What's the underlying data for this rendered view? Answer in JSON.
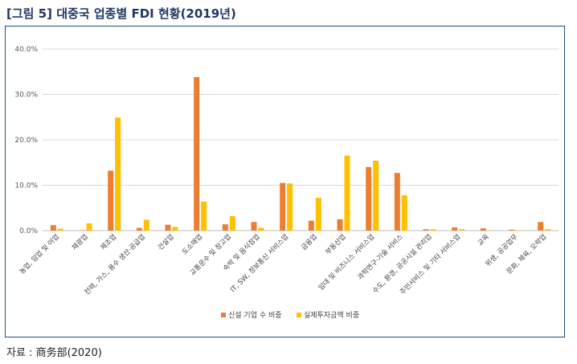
{
  "figure": {
    "title_tag": "[그림 5]",
    "title_text": "대중국 업종별 FDI 현황(2019년)",
    "source": "자료 : 商务部(2020)"
  },
  "chart_data": {
    "type": "bar",
    "title": "",
    "xlabel": "",
    "ylabel": "",
    "ylim": [
      0,
      40
    ],
    "yticks": [
      "0.0%",
      "10.0%",
      "20.0%",
      "30.0%",
      "40.0%"
    ],
    "ytick_values": [
      0,
      10,
      20,
      30,
      40
    ],
    "grid": true,
    "legend_position": "bottom",
    "categories": [
      "농업, 임업 및 어업",
      "채광업",
      "제조업",
      "전력, 가스, 용수 생산·공급업",
      "건설업",
      "도소매업",
      "교통운수 및 창고업",
      "숙박 및 음식점업",
      "IT, SW, 정보통신 서비스업",
      "금융업",
      "부동산업",
      "임대 및 비즈니스 서비스업",
      "과학연구·기술 서비스",
      "수도, 환경, 공공시설 관리업",
      "주민서비스 및 기타 서비스업",
      "교육",
      "위생, 공공업무",
      "문화, 체육, 오락업"
    ],
    "series": [
      {
        "name": "신설 기업 수 비중",
        "color": "#ed7d31",
        "values": [
          1.2,
          0.1,
          13.2,
          0.6,
          1.3,
          33.8,
          1.4,
          1.9,
          10.5,
          2.2,
          2.5,
          14.0,
          12.7,
          0.3,
          0.7,
          0.5,
          0.2,
          1.9
        ]
      },
      {
        "name": "실제투자금액 비중",
        "color": "#ffc000",
        "values": [
          0.4,
          1.6,
          24.9,
          2.4,
          0.8,
          6.4,
          3.2,
          0.6,
          10.4,
          7.2,
          16.5,
          15.4,
          7.8,
          0.3,
          0.3,
          0.1,
          0.1,
          0.3
        ]
      }
    ]
  }
}
